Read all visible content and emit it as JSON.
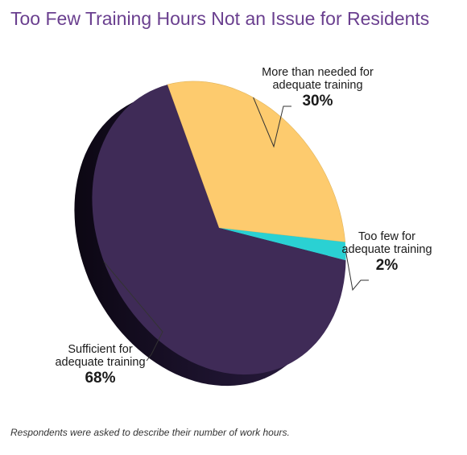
{
  "title": "Too Few Training Hours Not an Issue for Residents",
  "footnote": "Respondents were asked to describe their number of work hours.",
  "chart_data": {
    "type": "pie",
    "title": "Too Few Training Hours Not an Issue for Residents",
    "slices": [
      {
        "label_line1": "More than needed for",
        "label_line2": "adequate training",
        "label": "More than needed for adequate training",
        "value": 30,
        "display": "30%",
        "color": "#fdcb6e"
      },
      {
        "label_line1": "Too few for",
        "label_line2": "adequate training",
        "label": "Too few for adequate training",
        "value": 2,
        "display": "2%",
        "color": "#2ad1d3"
      },
      {
        "label_line1": "Sufficient for",
        "label_line2": "adequate training",
        "label": "Sufficient for adequate training",
        "value": 68,
        "display": "68%",
        "color": "#3f2b57"
      }
    ],
    "style": "3d-tilted-pie"
  }
}
